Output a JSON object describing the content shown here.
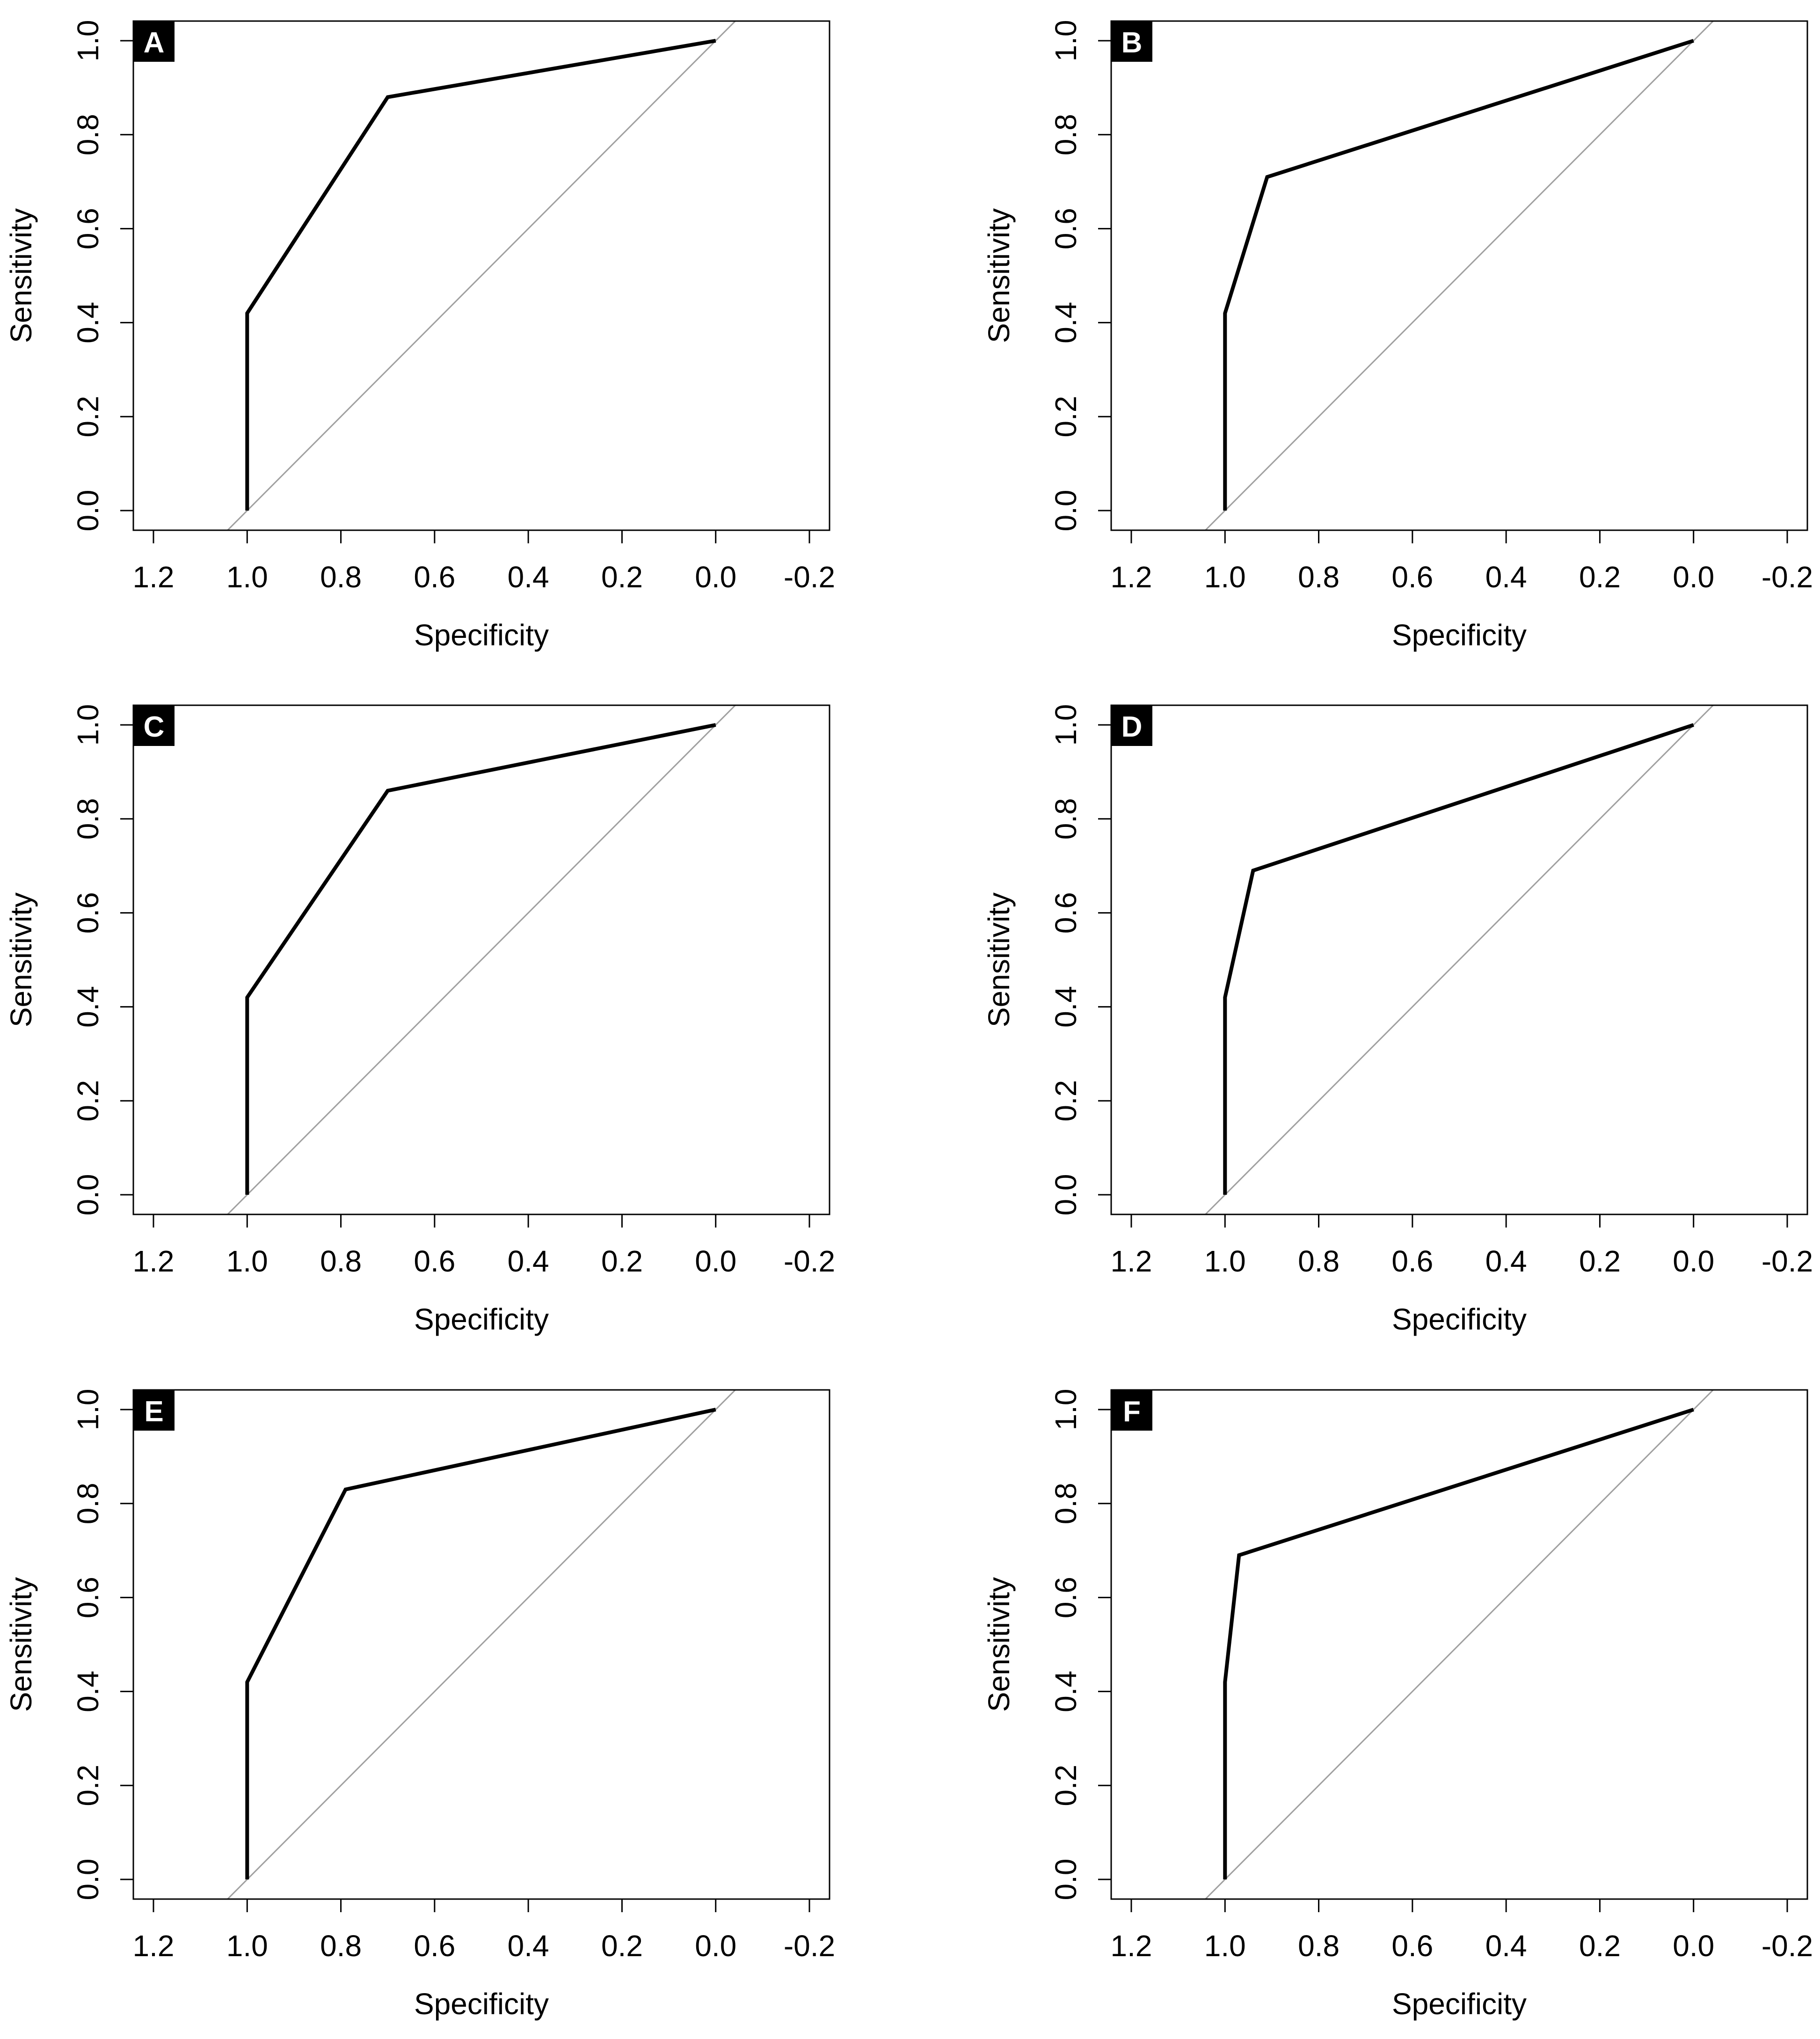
{
  "chart_data": [
    {
      "panel": "A",
      "type": "line",
      "xlabel": "Specificity",
      "ylabel": "Sensitivity",
      "xlim": [
        1.2,
        -0.2
      ],
      "ylim": [
        0.0,
        1.0
      ],
      "x_reversed": true,
      "xticks": [
        "1.2",
        "1.0",
        "0.8",
        "0.6",
        "0.4",
        "0.2",
        "0.0",
        "-0.2"
      ],
      "yticks": [
        "0.0",
        "0.2",
        "0.4",
        "0.6",
        "0.8",
        "1.0"
      ],
      "grid": false,
      "reference_line": "diagonal",
      "series": [
        {
          "x": [
            1.0,
            1.0,
            0.7,
            0.0
          ],
          "y": [
            0.0,
            0.42,
            0.88,
            1.0
          ]
        }
      ]
    },
    {
      "panel": "B",
      "type": "line",
      "xlabel": "Specificity",
      "ylabel": "Sensitivity",
      "xlim": [
        1.2,
        -0.2
      ],
      "ylim": [
        0.0,
        1.0
      ],
      "x_reversed": true,
      "xticks": [
        "1.2",
        "1.0",
        "0.8",
        "0.6",
        "0.4",
        "0.2",
        "0.0",
        "-0.2"
      ],
      "yticks": [
        "0.0",
        "0.2",
        "0.4",
        "0.6",
        "0.8",
        "1.0"
      ],
      "grid": false,
      "reference_line": "diagonal",
      "series": [
        {
          "x": [
            1.0,
            1.0,
            0.91,
            0.0
          ],
          "y": [
            0.0,
            0.42,
            0.71,
            1.0
          ]
        }
      ]
    },
    {
      "panel": "C",
      "type": "line",
      "xlabel": "Specificity",
      "ylabel": "Sensitivity",
      "xlim": [
        1.2,
        -0.2
      ],
      "ylim": [
        0.0,
        1.0
      ],
      "x_reversed": true,
      "xticks": [
        "1.2",
        "1.0",
        "0.8",
        "0.6",
        "0.4",
        "0.2",
        "0.0",
        "-0.2"
      ],
      "yticks": [
        "0.0",
        "0.2",
        "0.4",
        "0.6",
        "0.8",
        "1.0"
      ],
      "grid": false,
      "reference_line": "diagonal",
      "series": [
        {
          "x": [
            1.0,
            1.0,
            0.7,
            0.0
          ],
          "y": [
            0.0,
            0.42,
            0.86,
            1.0
          ]
        }
      ]
    },
    {
      "panel": "D",
      "type": "line",
      "xlabel": "Specificity",
      "ylabel": "Sensitivity",
      "xlim": [
        1.2,
        -0.2
      ],
      "ylim": [
        0.0,
        1.0
      ],
      "x_reversed": true,
      "xticks": [
        "1.2",
        "1.0",
        "0.8",
        "0.6",
        "0.4",
        "0.2",
        "0.0",
        "-0.2"
      ],
      "yticks": [
        "0.0",
        "0.2",
        "0.4",
        "0.6",
        "0.8",
        "1.0"
      ],
      "grid": false,
      "reference_line": "diagonal",
      "series": [
        {
          "x": [
            1.0,
            1.0,
            0.94,
            0.0
          ],
          "y": [
            0.0,
            0.42,
            0.69,
            1.0
          ]
        }
      ]
    },
    {
      "panel": "E",
      "type": "line",
      "xlabel": "Specificity",
      "ylabel": "Sensitivity",
      "xlim": [
        1.2,
        -0.2
      ],
      "ylim": [
        0.0,
        1.0
      ],
      "x_reversed": true,
      "xticks": [
        "1.2",
        "1.0",
        "0.8",
        "0.6",
        "0.4",
        "0.2",
        "0.0",
        "-0.2"
      ],
      "yticks": [
        "0.0",
        "0.2",
        "0.4",
        "0.6",
        "0.8",
        "1.0"
      ],
      "grid": false,
      "reference_line": "diagonal",
      "series": [
        {
          "x": [
            1.0,
            1.0,
            0.79,
            0.0
          ],
          "y": [
            0.0,
            0.42,
            0.83,
            1.0
          ]
        }
      ]
    },
    {
      "panel": "F",
      "type": "line",
      "xlabel": "Specificity",
      "ylabel": "Sensitivity",
      "xlim": [
        1.2,
        -0.2
      ],
      "ylim": [
        0.0,
        1.0
      ],
      "x_reversed": true,
      "xticks": [
        "1.2",
        "1.0",
        "0.8",
        "0.6",
        "0.4",
        "0.2",
        "0.0",
        "-0.2"
      ],
      "yticks": [
        "0.0",
        "0.2",
        "0.4",
        "0.6",
        "0.8",
        "1.0"
      ],
      "grid": false,
      "reference_line": "diagonal",
      "series": [
        {
          "x": [
            1.0,
            1.0,
            0.97,
            0.0
          ],
          "y": [
            0.0,
            0.42,
            0.69,
            1.0
          ]
        }
      ]
    }
  ],
  "colors": {
    "curve": "#000000",
    "diagonal": "#a0a0a0",
    "panel_label_bg": "#000000",
    "panel_label_text": "#ffffff"
  }
}
